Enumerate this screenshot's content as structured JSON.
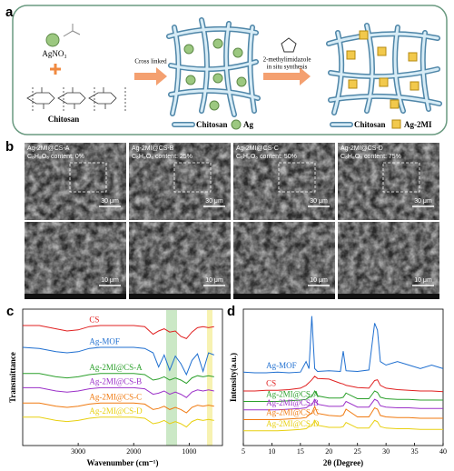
{
  "panel_a": {
    "label": "a",
    "reagent": "AgNO₃",
    "polymer": "Chitosan",
    "step1": "Cross linked",
    "step2_line1": "2-methylimidazole",
    "step2_line2": "in situ synthesis",
    "legend": [
      "Chitosan",
      "Ag",
      "Chitosan",
      "Ag-2MI"
    ]
  },
  "panel_b": {
    "label": "b",
    "samples": [
      {
        "name": "Ag-2MI@CS-A",
        "content": "C₆H₈O₆ content: 0%",
        "scale_top": "30 μm",
        "scale_bottom": "10 μm"
      },
      {
        "name": "Ag-2MI@CS-B",
        "content": "C₆H₈O₆ content: 25%",
        "scale_top": "30 μm",
        "scale_bottom": "10 μm"
      },
      {
        "name": "Ag-2MI@CS-C",
        "content": "C₆H₈O₆ content: 50%",
        "scale_top": "30 μm",
        "scale_bottom": "10 μm"
      },
      {
        "name": "Ag-2MI@CS-D",
        "content": "C₆H₈O₆ content: 75%",
        "scale_top": "30 μm",
        "scale_bottom": "10 μm"
      }
    ]
  },
  "chart_data": [
    {
      "type": "line",
      "label": "c",
      "xlabel": "Wavenumber (cm⁻¹)",
      "ylabel": "Transmittance",
      "x": [
        4000,
        3700,
        3400,
        3200,
        3000,
        2800,
        2600,
        2400,
        2200,
        2000,
        1800,
        1650,
        1550,
        1450,
        1350,
        1250,
        1150,
        1050,
        950,
        850,
        750,
        650,
        550
      ],
      "xlim": [
        4000,
        400
      ],
      "xticks": [
        3000,
        2000,
        1000
      ],
      "ylim": [
        0,
        12.5
      ],
      "series": [
        {
          "name": "CS",
          "color": "#e02020",
          "values": [
            11,
            11,
            10.7,
            10.5,
            10.6,
            10.9,
            11,
            11,
            11,
            11,
            10.9,
            10.2,
            10.5,
            10.7,
            10.4,
            10.5,
            10.0,
            9.8,
            10.4,
            10.8,
            10.9,
            10.8,
            10.9
          ]
        },
        {
          "name": "Ag-MOF",
          "color": "#1f6fd0",
          "values": [
            9,
            8.9,
            8.6,
            8.5,
            8.6,
            8.9,
            9,
            9,
            9,
            9,
            8.9,
            8.5,
            7.2,
            8.3,
            6.9,
            8.2,
            7.5,
            6.5,
            7.8,
            8.4,
            6.8,
            8.5,
            8.3
          ]
        },
        {
          "name": "Ag-2MI@CS-A",
          "color": "#2ca02c",
          "values": [
            6.6,
            6.6,
            6.3,
            6.2,
            6.3,
            6.5,
            6.6,
            6.6,
            6.6,
            6.6,
            6.5,
            6.0,
            6.1,
            6.3,
            6.0,
            6.2,
            6.0,
            5.7,
            6.2,
            6.4,
            6.3,
            6.4,
            6.3
          ]
        },
        {
          "name": "Ag-2MI@CS-B",
          "color": "#9b30c8",
          "values": [
            5.3,
            5.3,
            5.0,
            4.9,
            5.0,
            5.2,
            5.3,
            5.3,
            5.3,
            5.3,
            5.2,
            4.7,
            4.8,
            5.0,
            4.7,
            4.9,
            4.7,
            4.4,
            4.9,
            5.1,
            5.0,
            5.1,
            5.0
          ]
        },
        {
          "name": "Ag-2MI@CS-C",
          "color": "#f07a10",
          "values": [
            3.9,
            3.9,
            3.6,
            3.5,
            3.6,
            3.8,
            3.9,
            3.9,
            3.9,
            3.9,
            3.8,
            3.3,
            3.4,
            3.6,
            3.3,
            3.5,
            3.3,
            3.0,
            3.5,
            3.7,
            3.6,
            3.7,
            3.6
          ]
        },
        {
          "name": "Ag-2MI@CS-D",
          "color": "#e8d010",
          "values": [
            2.6,
            2.6,
            2.3,
            2.2,
            2.3,
            2.5,
            2.6,
            2.6,
            2.6,
            2.6,
            2.5,
            2.0,
            2.1,
            2.3,
            2.0,
            2.2,
            2.0,
            1.7,
            2.2,
            2.4,
            2.3,
            2.4,
            2.3
          ]
        }
      ]
    },
    {
      "type": "line",
      "label": "d",
      "xlabel": "2θ (Degree)",
      "ylabel": "Intensity(a.u.)",
      "x": [
        5,
        7,
        9,
        11,
        13,
        15,
        16,
        16.5,
        17,
        17.5,
        18,
        20,
        22,
        22.5,
        23,
        25,
        27,
        28,
        28.5,
        29,
        30,
        32,
        34,
        36,
        38,
        40
      ],
      "xlim": [
        5,
        40
      ],
      "xticks": [
        5,
        10,
        15,
        20,
        25,
        30,
        35,
        40
      ],
      "ylim": [
        0,
        19.5
      ],
      "series": [
        {
          "name": "Ag-MOF",
          "color": "#1f6fd0",
          "values": [
            10.5,
            10.4,
            10.4,
            10.5,
            10.4,
            10.5,
            12,
            11,
            18.5,
            11,
            10.6,
            10.7,
            10.6,
            13.5,
            10.7,
            10.6,
            10.8,
            17.5,
            16.5,
            12,
            11.5,
            12,
            11.5,
            11,
            11.5,
            11
          ]
        },
        {
          "name": "CS",
          "color": "#e02020",
          "values": [
            7.8,
            7.8,
            7.9,
            7.9,
            8,
            8.2,
            8.6,
            9,
            9.4,
            9.9,
            9.6,
            9.5,
            8.9,
            8.8,
            8.6,
            8.3,
            8.2,
            9.3,
            9.4,
            8.6,
            8.2,
            8.0,
            7.9,
            7.8,
            7.8,
            7.7
          ]
        },
        {
          "name": "Ag-2MI@CS-A",
          "color": "#2ca02c",
          "values": [
            6.3,
            6.3,
            6.3,
            6.3,
            6.4,
            6.5,
            6.6,
            6.9,
            7.0,
            7.8,
            7.1,
            6.8,
            6.8,
            6.9,
            7.5,
            6.7,
            6.7,
            7.8,
            7.6,
            6.9,
            6.7,
            6.6,
            6.6,
            6.5,
            6.5,
            6.5
          ]
        },
        {
          "name": "Ag-2MI@CS-B",
          "color": "#9b30c8",
          "values": [
            5.1,
            5.1,
            5.1,
            5.1,
            5.2,
            5.3,
            5.4,
            5.7,
            5.8,
            6.6,
            5.9,
            5.6,
            5.6,
            5.7,
            6.3,
            5.5,
            5.5,
            6.6,
            6.4,
            5.7,
            5.5,
            5.4,
            5.4,
            5.3,
            5.3,
            5.3
          ]
        },
        {
          "name": "Ag-2MI@CS-C",
          "color": "#f07a10",
          "values": [
            3.7,
            3.7,
            3.7,
            3.7,
            3.8,
            3.9,
            4.0,
            4.4,
            4.6,
            5.6,
            4.6,
            4.3,
            4.2,
            4.4,
            5.2,
            4.1,
            4.1,
            5.4,
            5.2,
            4.3,
            4.1,
            4.0,
            4.0,
            3.9,
            3.9,
            3.9
          ]
        },
        {
          "name": "Ag-2MI@CS-D",
          "color": "#e8d010",
          "values": [
            2.1,
            2.1,
            2.1,
            2.1,
            2.2,
            2.3,
            2.4,
            2.7,
            2.8,
            3.6,
            2.9,
            2.6,
            2.6,
            2.7,
            3.3,
            2.5,
            2.5,
            3.6,
            3.4,
            2.7,
            2.5,
            2.4,
            2.4,
            2.3,
            2.3,
            2.3
          ]
        }
      ]
    }
  ]
}
